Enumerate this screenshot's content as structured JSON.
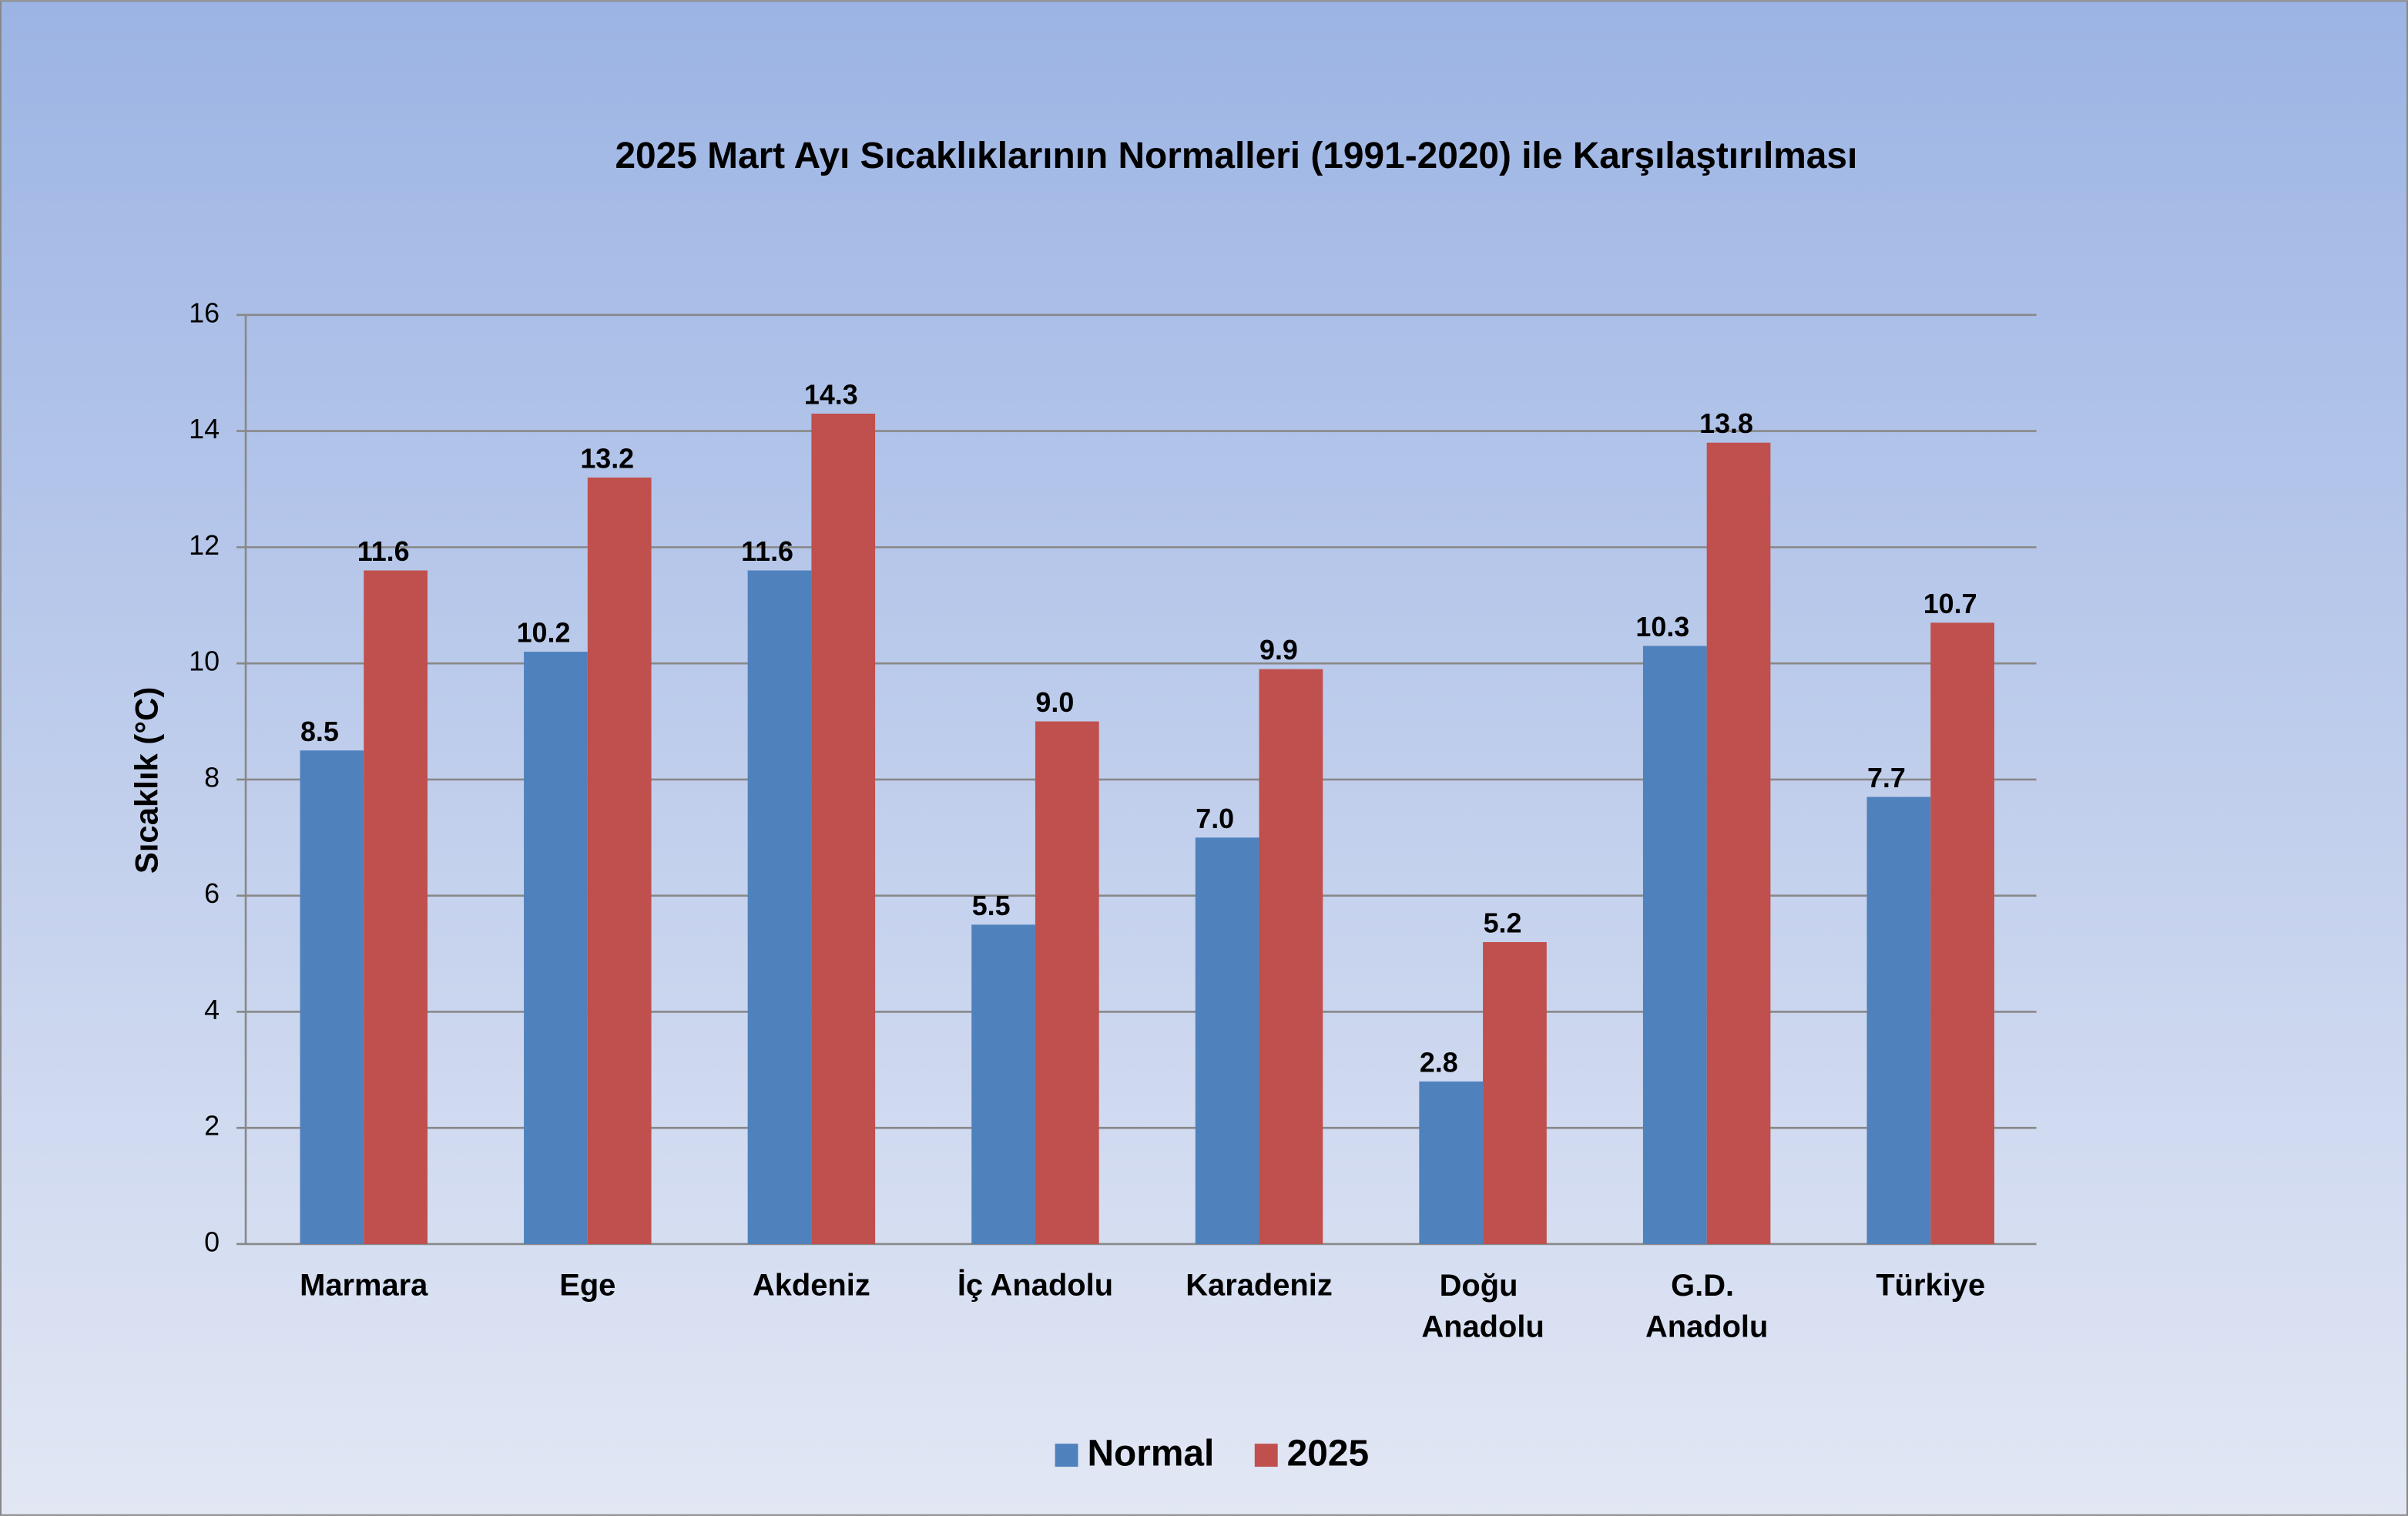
{
  "chart_data": {
    "type": "bar",
    "title": "2025 Mart Ayı Sıcaklıklarının Normalleri (1991-2020) ile Karşılaştırılması",
    "y_label": "Sıcaklık (°C)",
    "categories": [
      "Marmara",
      "Ege",
      "Akdeniz",
      "İç Anadolu",
      "Karadeniz",
      "Doğu Anadolu",
      "G.D. Anadolu",
      "Türkiye"
    ],
    "series": [
      {
        "name": "Normal",
        "color": "#4f81bd",
        "values": [
          8.5,
          10.2,
          11.6,
          5.5,
          7.0,
          2.8,
          10.3,
          7.7
        ],
        "value_labels": [
          "8.5",
          "10.2",
          "11.6",
          "5.5",
          "7.0",
          "2.8",
          "10.3",
          "7.7"
        ]
      },
      {
        "name": "2025",
        "color": "#c0504d",
        "values": [
          11.6,
          13.2,
          14.3,
          9.0,
          9.9,
          5.2,
          13.8,
          10.7
        ],
        "value_labels": [
          "11.6",
          "13.2",
          "14.3",
          "9.0",
          "9.9",
          "5.2",
          "13.8",
          "10.7"
        ]
      }
    ],
    "ylim": [
      0,
      16
    ],
    "yticks": [
      0,
      2,
      4,
      6,
      8,
      10,
      12,
      14,
      16
    ],
    "grid": true,
    "legend": "bottom"
  }
}
